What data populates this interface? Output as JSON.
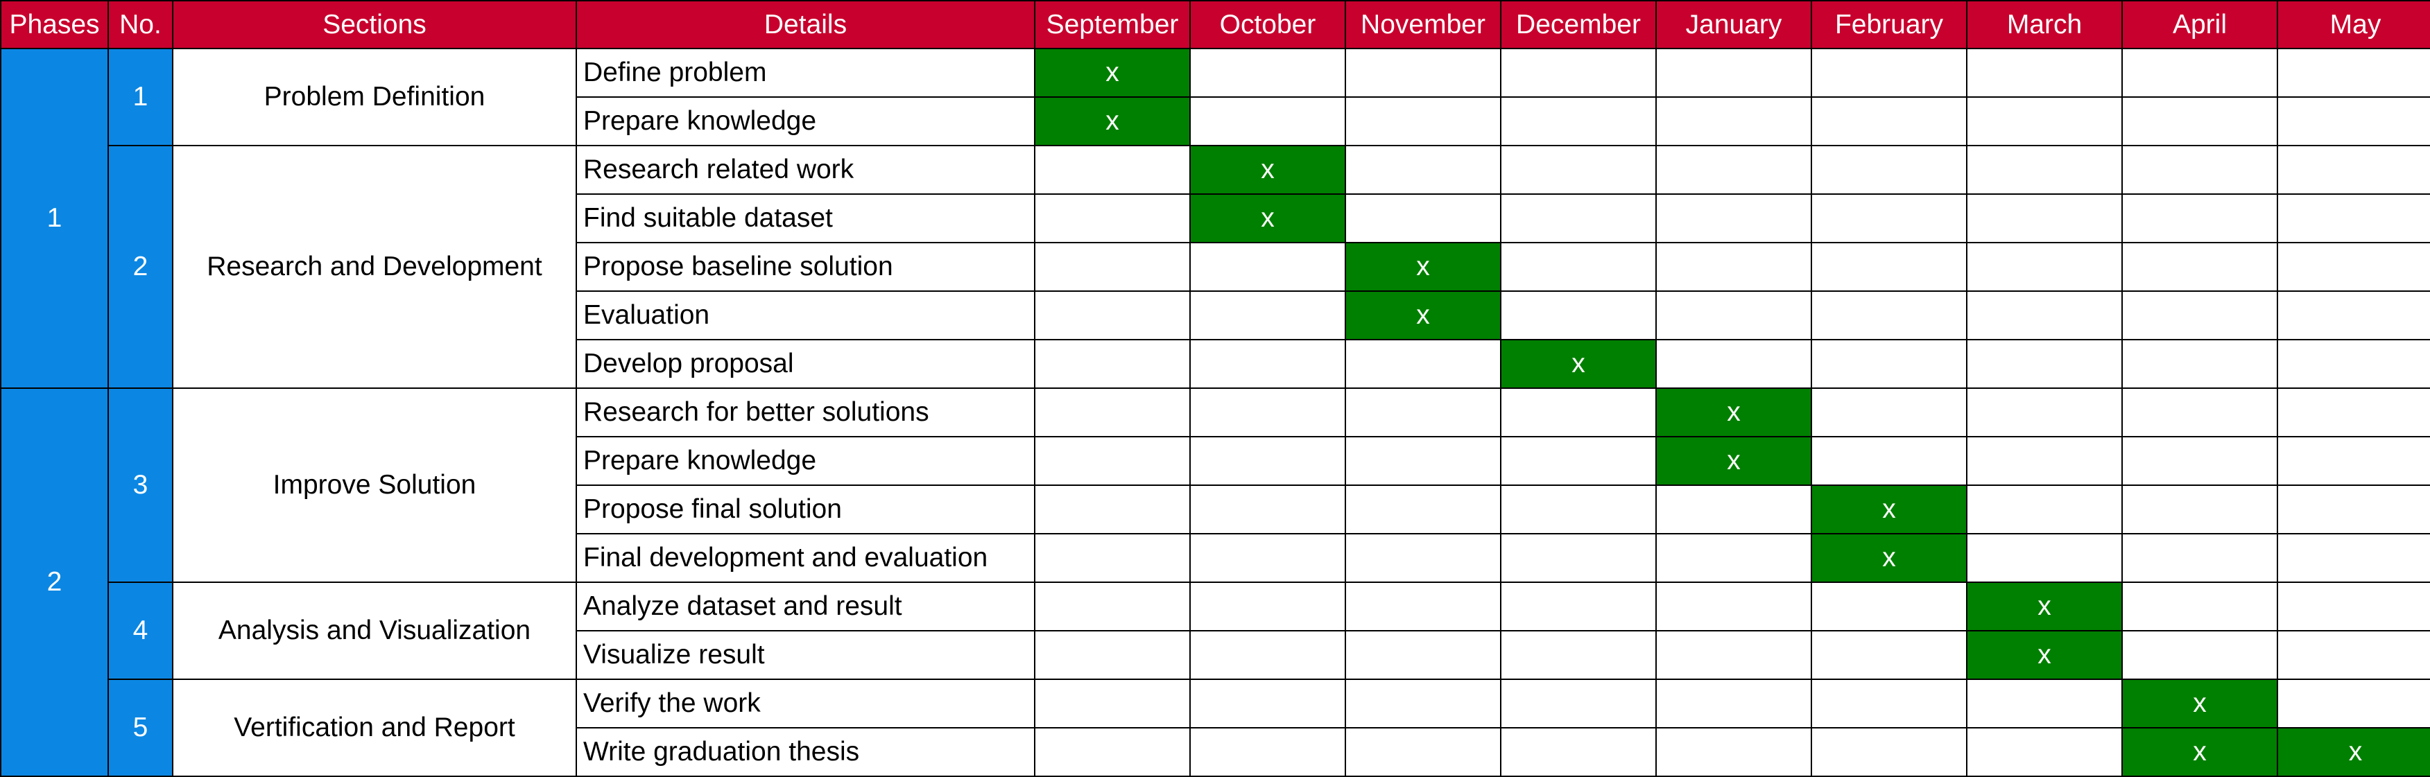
{
  "headers": {
    "phases": "Phases",
    "no": "No.",
    "sections": "Sections",
    "details": "Details"
  },
  "months": [
    "September",
    "October",
    "November",
    "December",
    "January",
    "February",
    "March",
    "April",
    "May"
  ],
  "mark": "x",
  "colors": {
    "header_bg": "#c8002d",
    "phase_bg": "#0b87e3",
    "active_bg": "#008000",
    "text_light": "#ffffff"
  },
  "phases": [
    {
      "label": "1",
      "sections": [
        {
          "number": "1",
          "name": "Problem Definition",
          "tasks": [
            {
              "detail": "Define problem",
              "months": [
                "September"
              ]
            },
            {
              "detail": "Prepare knowledge",
              "months": [
                "September"
              ]
            }
          ]
        },
        {
          "number": "2",
          "name": "Research and Development",
          "tasks": [
            {
              "detail": "Research related work",
              "months": [
                "October"
              ]
            },
            {
              "detail": "Find suitable dataset",
              "months": [
                "October"
              ]
            },
            {
              "detail": "Propose baseline solution",
              "months": [
                "November"
              ]
            },
            {
              "detail": "Evaluation",
              "months": [
                "November"
              ]
            },
            {
              "detail": "Develop proposal",
              "months": [
                "December"
              ]
            }
          ]
        }
      ]
    },
    {
      "label": "2",
      "sections": [
        {
          "number": "3",
          "name": "Improve Solution",
          "tasks": [
            {
              "detail": "Research for better solutions",
              "months": [
                "January"
              ]
            },
            {
              "detail": "Prepare knowledge",
              "months": [
                "January"
              ]
            },
            {
              "detail": "Propose final solution",
              "months": [
                "February"
              ]
            },
            {
              "detail": "Final development and evaluation",
              "months": [
                "February"
              ]
            }
          ]
        },
        {
          "number": "4",
          "name": "Analysis and Visualization",
          "tasks": [
            {
              "detail": "Analyze dataset and result",
              "months": [
                "March"
              ]
            },
            {
              "detail": "Visualize result",
              "months": [
                "March"
              ]
            }
          ]
        },
        {
          "number": "5",
          "name": "Vertification and Report",
          "tasks": [
            {
              "detail": "Verify the work",
              "months": [
                "April"
              ]
            },
            {
              "detail": "Write graduation thesis",
              "months": [
                "April",
                "May"
              ]
            }
          ]
        }
      ]
    }
  ]
}
